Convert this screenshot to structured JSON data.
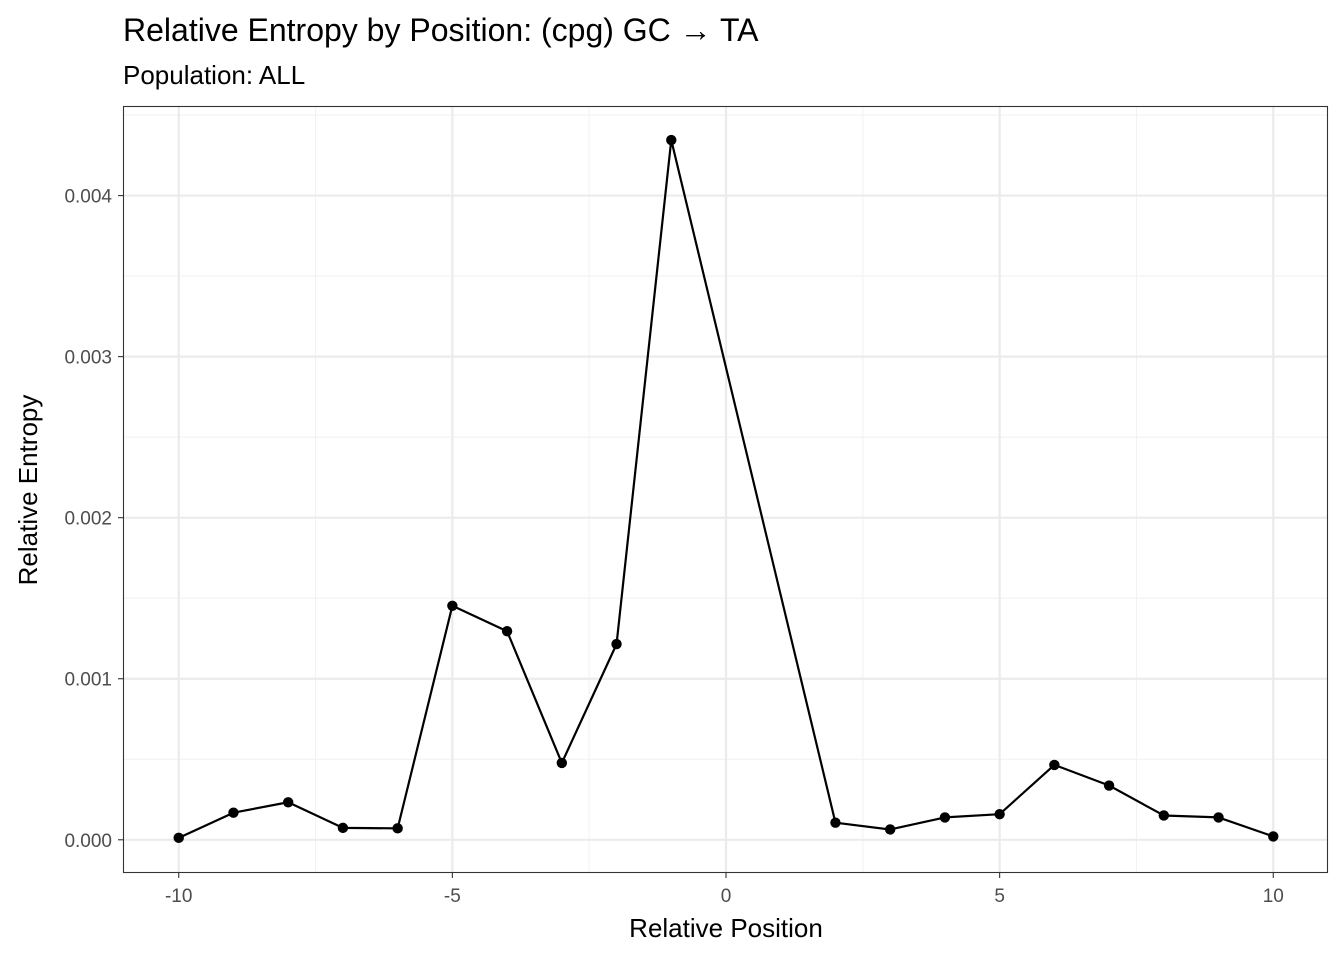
{
  "chart_data": {
    "type": "line",
    "title": "Relative Entropy by Position: (cpg) GC → TA",
    "subtitle": "Population: ALL",
    "xlabel": "Relative Position",
    "ylabel": "Relative Entropy",
    "xlim": [
      -11,
      11
    ],
    "ylim": [
      -0.0002,
      0.00455
    ],
    "x_ticks": [
      -10,
      -5,
      0,
      5,
      10
    ],
    "x_tick_labels": [
      "-10",
      "-5",
      "0",
      "5",
      "10"
    ],
    "y_ticks": [
      0.0,
      0.001,
      0.002,
      0.003,
      0.004
    ],
    "y_tick_labels": [
      "0.000",
      "0.001",
      "0.002",
      "0.003",
      "0.004"
    ],
    "grid": true,
    "legend": "none",
    "series": [
      {
        "x": [
          -10,
          -9,
          -8,
          -7,
          -6,
          -5,
          -4,
          -3,
          -2,
          -1,
          2,
          3,
          4,
          5,
          6,
          7,
          8,
          9,
          10
        ],
        "y": [
          1.2e-05,
          0.000168,
          0.000233,
          7.4e-05,
          7.1e-05,
          0.001453,
          0.001295,
          0.000477,
          0.001215,
          0.004345,
          0.000106,
          6.4e-05,
          0.000139,
          0.000159,
          0.000465,
          0.000337,
          0.000151,
          0.000139,
          2.1e-05
        ],
        "color": "#000000"
      }
    ]
  }
}
